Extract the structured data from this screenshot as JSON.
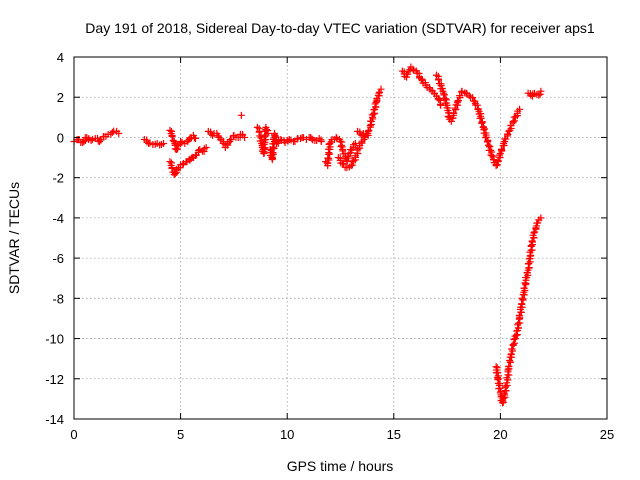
{
  "chart_data": {
    "type": "scatter",
    "title": "Day 191 of 2018, Sidereal Day-to-day VTEC variation (SDTVAR) for receiver aps1",
    "xlabel": "GPS time / hours",
    "ylabel": "SDTVAR / TECUs",
    "xlim": [
      0,
      25
    ],
    "ylim": [
      -14,
      4
    ],
    "xticks": [
      0,
      5,
      10,
      15,
      20,
      25
    ],
    "yticks": [
      -14,
      -12,
      -10,
      -8,
      -6,
      -4,
      -2,
      0,
      2,
      4
    ],
    "xtick_labels": [
      "0",
      "5",
      "10",
      "15",
      "20",
      "25"
    ],
    "ytick_labels": [
      "-14",
      "-12",
      "-10",
      "-8",
      "-6",
      "-4",
      "-2",
      "0",
      "2",
      "4"
    ],
    "grid": true,
    "marker": "+",
    "color": "#ff0000",
    "series": [
      {
        "name": "aps1",
        "segments": [
          [
            [
              0.0,
              -0.2
            ],
            [
              0.2,
              -0.1
            ],
            [
              0.4,
              -0.25
            ],
            [
              0.6,
              0.0
            ],
            [
              0.8,
              -0.15
            ],
            [
              1.0,
              -0.05
            ],
            [
              1.2,
              -0.2
            ],
            [
              1.4,
              0.05
            ],
            [
              1.6,
              0.15
            ],
            [
              1.8,
              0.25
            ],
            [
              2.0,
              0.3
            ],
            [
              2.1,
              0.2
            ]
          ],
          [
            [
              3.3,
              -0.1
            ],
            [
              3.5,
              -0.3
            ],
            [
              3.7,
              -0.35
            ],
            [
              3.9,
              -0.3
            ],
            [
              4.1,
              -0.35
            ],
            [
              4.2,
              -0.3
            ]
          ],
          [
            [
              4.5,
              0.35
            ],
            [
              4.6,
              0.1
            ],
            [
              4.7,
              -0.2
            ],
            [
              4.8,
              -0.6
            ],
            [
              5.0,
              -0.2
            ],
            [
              5.2,
              -0.3
            ],
            [
              5.4,
              -0.1
            ],
            [
              5.6,
              0.1
            ],
            [
              5.7,
              -0.05
            ]
          ],
          [
            [
              4.5,
              -1.2
            ],
            [
              4.6,
              -1.5
            ],
            [
              4.7,
              -1.85
            ],
            [
              4.9,
              -1.5
            ],
            [
              5.1,
              -1.35
            ],
            [
              5.3,
              -1.2
            ],
            [
              5.5,
              -1.05
            ],
            [
              5.7,
              -0.9
            ],
            [
              5.9,
              -0.6
            ],
            [
              6.1,
              -0.7
            ],
            [
              6.2,
              -0.5
            ]
          ],
          [
            [
              6.3,
              0.3
            ],
            [
              6.5,
              0.1
            ],
            [
              6.7,
              0.2
            ],
            [
              6.8,
              0.0
            ],
            [
              7.0,
              -0.2
            ],
            [
              7.1,
              -0.5
            ],
            [
              7.3,
              -0.2
            ],
            [
              7.5,
              0.1
            ],
            [
              7.7,
              0.0
            ],
            [
              7.9,
              0.15
            ],
            [
              8.0,
              0.0
            ]
          ],
          [
            [
              7.85,
              1.1
            ]
          ],
          [
            [
              8.6,
              0.5
            ],
            [
              8.7,
              0.3
            ],
            [
              8.8,
              -0.3
            ],
            [
              8.9,
              -0.8
            ],
            [
              9.0,
              0.5
            ],
            [
              9.1,
              0.2
            ]
          ],
          [
            [
              9.2,
              -0.6
            ],
            [
              9.3,
              -1.1
            ],
            [
              9.4,
              0.2
            ],
            [
              9.5,
              -0.3
            ],
            [
              9.7,
              -0.1
            ],
            [
              9.9,
              -0.25
            ],
            [
              10.1,
              -0.1
            ],
            [
              10.3,
              -0.2
            ],
            [
              10.5,
              -0.05
            ],
            [
              10.7,
              0.0
            ],
            [
              10.9,
              -0.1
            ],
            [
              11.1,
              0.0
            ],
            [
              11.3,
              -0.15
            ],
            [
              11.5,
              -0.05
            ],
            [
              11.6,
              -0.2
            ]
          ],
          [
            [
              11.8,
              -1.2
            ],
            [
              11.9,
              -1.4
            ],
            [
              12.0,
              -0.3
            ],
            [
              12.1,
              -0.1
            ],
            [
              12.3,
              0.0
            ],
            [
              12.5,
              -0.2
            ],
            [
              12.6,
              -0.6
            ],
            [
              12.8,
              -1.2
            ],
            [
              12.9,
              -0.8
            ],
            [
              13.1,
              -0.5
            ],
            [
              13.2,
              -0.3
            ]
          ],
          [
            [
              12.4,
              -1.0
            ],
            [
              12.6,
              -1.3
            ],
            [
              12.8,
              -1.5
            ],
            [
              13.0,
              -1.4
            ],
            [
              13.2,
              -1.0
            ],
            [
              13.4,
              -0.4
            ],
            [
              13.6,
              -0.1
            ],
            [
              13.8,
              0.3
            ],
            [
              13.9,
              0.6
            ],
            [
              14.0,
              1.0
            ],
            [
              14.1,
              1.4
            ],
            [
              14.2,
              1.8
            ],
            [
              14.3,
              2.2
            ],
            [
              14.4,
              2.4
            ]
          ],
          [
            [
              13.3,
              0.3
            ],
            [
              13.5,
              0.1
            ],
            [
              13.7,
              0.2
            ],
            [
              13.8,
              0.1
            ]
          ],
          [
            [
              15.4,
              3.3
            ],
            [
              15.6,
              3.0
            ],
            [
              15.7,
              3.3
            ],
            [
              15.8,
              3.5
            ],
            [
              15.9,
              3.4
            ],
            [
              16.1,
              3.2
            ],
            [
              16.3,
              2.9
            ],
            [
              16.5,
              2.6
            ],
            [
              16.7,
              2.4
            ],
            [
              16.9,
              2.2
            ],
            [
              17.1,
              1.9
            ],
            [
              17.2,
              1.6
            ]
          ],
          [
            [
              17.0,
              3.1
            ],
            [
              17.1,
              2.9
            ],
            [
              17.3,
              2.3
            ],
            [
              17.5,
              1.6
            ],
            [
              17.6,
              1.0
            ],
            [
              17.7,
              0.8
            ],
            [
              17.8,
              1.1
            ],
            [
              18.0,
              1.8
            ],
            [
              18.2,
              2.3
            ],
            [
              18.4,
              2.2
            ],
            [
              18.6,
              2.0
            ],
            [
              18.8,
              1.8
            ],
            [
              19.0,
              1.3
            ],
            [
              19.2,
              0.5
            ],
            [
              19.4,
              -0.2
            ],
            [
              19.6,
              -0.9
            ],
            [
              19.8,
              -1.4
            ],
            [
              19.9,
              -1.2
            ],
            [
              20.0,
              -0.8
            ],
            [
              20.2,
              -0.2
            ],
            [
              20.4,
              0.3
            ],
            [
              20.6,
              0.8
            ],
            [
              20.8,
              1.2
            ],
            [
              20.9,
              1.4
            ]
          ],
          [
            [
              19.8,
              -11.4
            ],
            [
              19.9,
              -12.0
            ],
            [
              20.0,
              -12.7
            ],
            [
              20.1,
              -13.2
            ],
            [
              20.2,
              -12.8
            ],
            [
              20.3,
              -12.2
            ],
            [
              20.4,
              -11.5
            ],
            [
              20.5,
              -10.8
            ],
            [
              20.6,
              -10.3
            ],
            [
              20.7,
              -10.0
            ],
            [
              20.8,
              -9.6
            ],
            [
              20.9,
              -9.0
            ],
            [
              21.0,
              -8.3
            ],
            [
              21.1,
              -7.7
            ],
            [
              21.2,
              -7.1
            ],
            [
              21.3,
              -6.6
            ],
            [
              21.4,
              -5.9
            ],
            [
              21.5,
              -5.2
            ],
            [
              21.6,
              -4.7
            ],
            [
              21.7,
              -4.4
            ],
            [
              21.8,
              -4.1
            ],
            [
              21.9,
              -4.0
            ]
          ],
          [
            [
              21.3,
              2.2
            ],
            [
              21.5,
              2.05
            ],
            [
              21.6,
              2.2
            ],
            [
              21.8,
              2.1
            ],
            [
              21.9,
              2.3
            ]
          ]
        ]
      }
    ]
  }
}
